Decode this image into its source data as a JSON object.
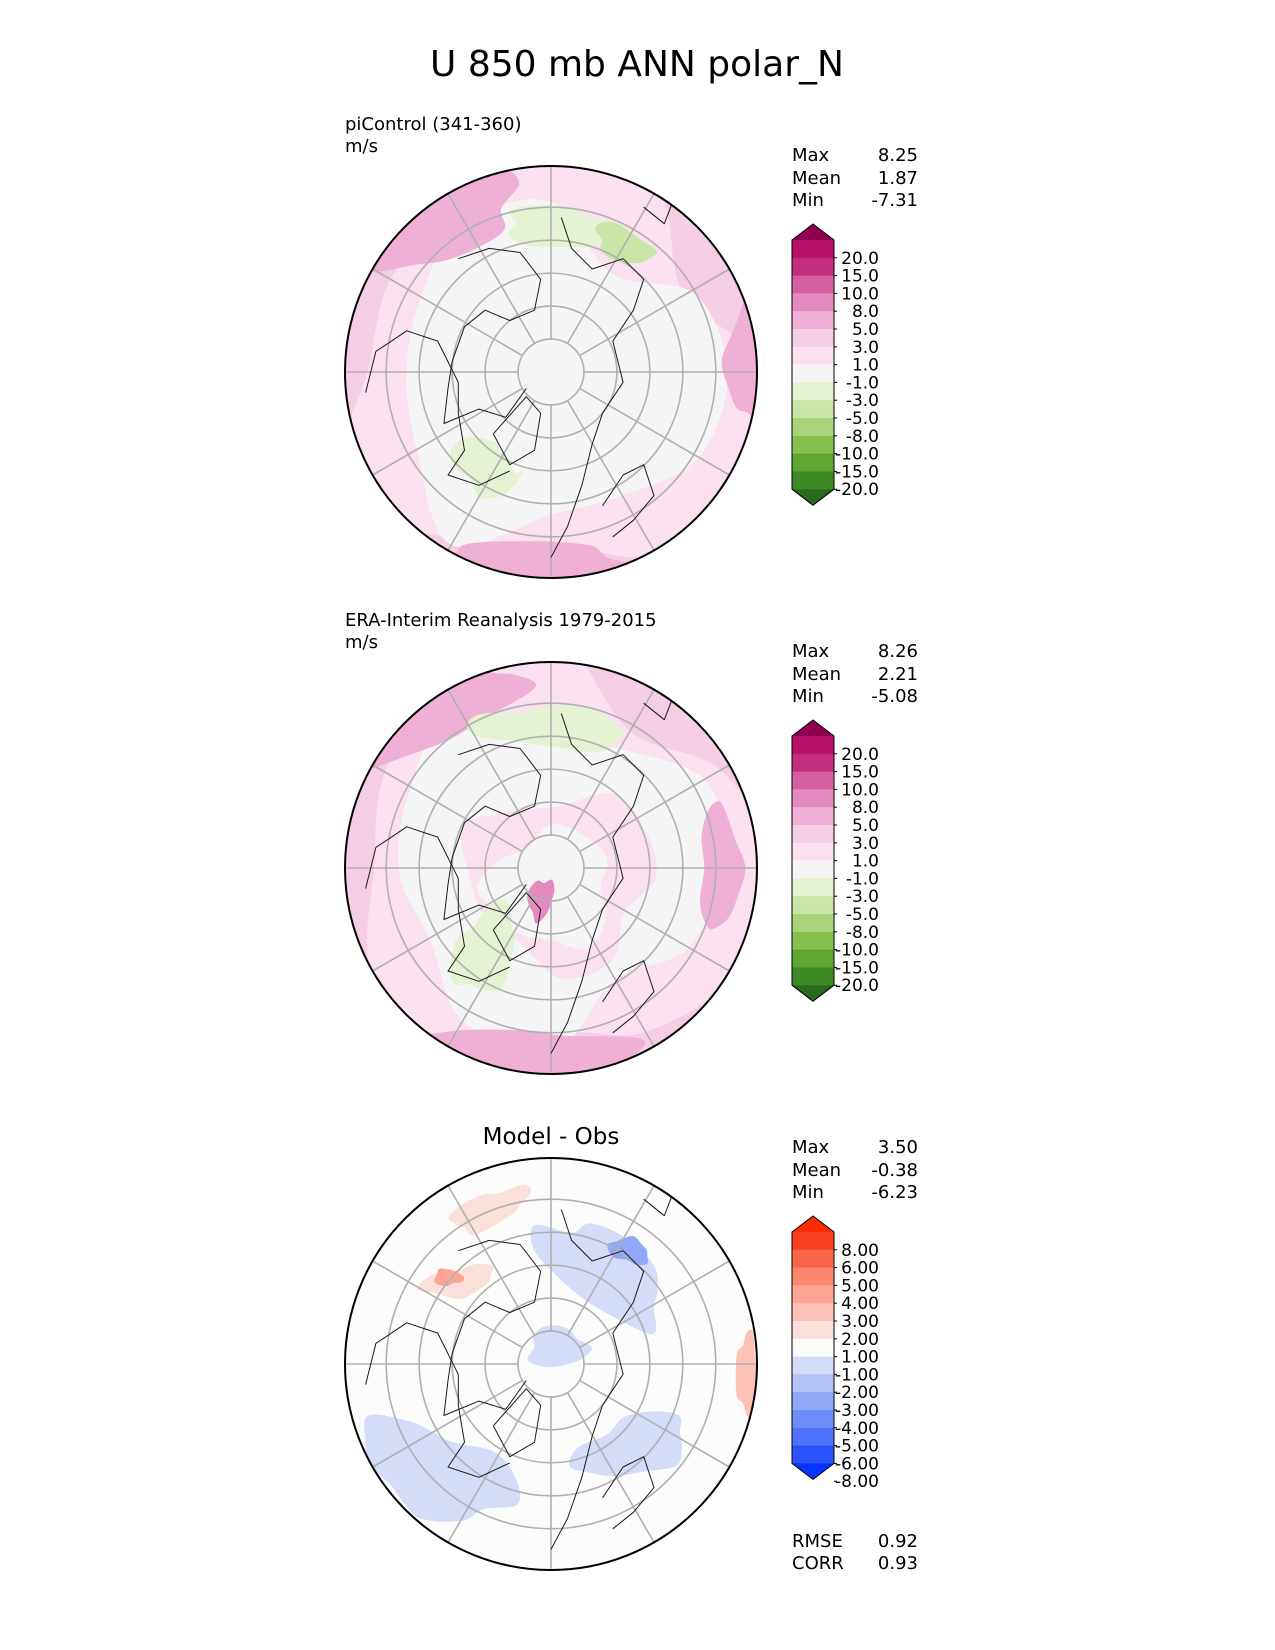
{
  "title": "U 850 mb ANN polar_N",
  "colors": {
    "field_cbar": [
      "#2a6a1c",
      "#3e8a24",
      "#5ea733",
      "#87c04f",
      "#a9d378",
      "#cae6a6",
      "#e4f2d2",
      "#f5f5f5",
      "#fbe1ef",
      "#f5cde4",
      "#eeb0d5",
      "#e38abe",
      "#d5609f",
      "#c22d7f",
      "#b7106a",
      "#8e0152"
    ],
    "diff_cbar": [
      "#0535ff",
      "#2b53fb",
      "#4f72fb",
      "#6e8cfa",
      "#91a7f8",
      "#b3c2f7",
      "#d4dcfa",
      "#fcfcfc",
      "#fbe0da",
      "#fcc2b5",
      "#fca595",
      "#fb8770",
      "#f96548",
      "#f9411f",
      "#ff2b00"
    ],
    "circle_outline": "#000000",
    "gridline": "#b0b0b0",
    "coastline": "#1a1a1a"
  },
  "chart_data": [
    {
      "type": "heatmap",
      "projection": "north-polar-stereographic",
      "title": "piControl (341-360)",
      "units": "m/s",
      "stats": [
        {
          "label": "Max",
          "value": "8.25"
        },
        {
          "label": "Mean",
          "value": "1.87"
        },
        {
          "label": "Min",
          "value": "-7.31"
        }
      ],
      "colorbar_levels": [
        "20.0",
        "15.0",
        "10.0",
        "8.0",
        "5.0",
        "3.0",
        "1.0",
        "-1.0",
        "-3.0",
        "-5.0",
        "-8.0",
        "-10.0",
        "-15.0",
        "-20.0"
      ],
      "colorbar_extend": "both",
      "grid": true
    },
    {
      "type": "heatmap",
      "projection": "north-polar-stereographic",
      "title": "ERA-Interim Reanalysis 1979-2015",
      "units": "m/s",
      "stats": [
        {
          "label": "Max",
          "value": "8.26"
        },
        {
          "label": "Mean",
          "value": "2.21"
        },
        {
          "label": "Min",
          "value": "-5.08"
        }
      ],
      "colorbar_levels": [
        "20.0",
        "15.0",
        "10.0",
        "8.0",
        "5.0",
        "3.0",
        "1.0",
        "-1.0",
        "-3.0",
        "-5.0",
        "-8.0",
        "-10.0",
        "-15.0",
        "-20.0"
      ],
      "colorbar_extend": "both",
      "grid": true
    },
    {
      "type": "heatmap",
      "projection": "north-polar-stereographic",
      "title": "Model - Obs",
      "stats": [
        {
          "label": "Max",
          "value": "3.50"
        },
        {
          "label": "Mean",
          "value": "-0.38"
        },
        {
          "label": "Min",
          "value": "-6.23"
        }
      ],
      "colorbar_levels": [
        "8.00",
        "6.00",
        "5.00",
        "4.00",
        "3.00",
        "2.00",
        "1.00",
        "-1.00",
        "-2.00",
        "-3.00",
        "-4.00",
        "-5.00",
        "-6.00",
        "-8.00"
      ],
      "colorbar_extend": "both",
      "metrics": [
        {
          "label": "RMSE",
          "value": "0.92"
        },
        {
          "label": "CORR",
          "value": "0.93"
        }
      ],
      "grid": true
    }
  ]
}
